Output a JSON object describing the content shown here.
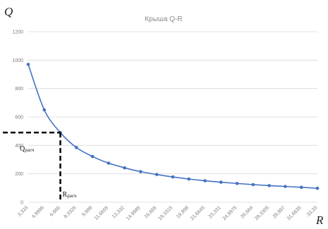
{
  "chart_data": {
    "type": "line",
    "title": "Крыша Q-R",
    "ylabel": "Q",
    "xlabel": "R",
    "ylim": [
      0,
      1200
    ],
    "yticks": [
      0,
      200,
      400,
      600,
      800,
      1000,
      1200
    ],
    "grid": true,
    "legend": "none",
    "x_categories": [
      "3,333",
      "4,9995",
      "6,666",
      "8,3325",
      "9,999",
      "11,6655",
      "13,332",
      "14,9985",
      "16,665",
      "18,3315",
      "19,998",
      "21,6645",
      "23,331",
      "24,9975",
      "26,664",
      "28,3305",
      "29,997",
      "31,6635",
      "33,33"
    ],
    "series": [
      {
        "values": [
          970,
          650,
          490,
          385,
          322,
          275,
          242,
          215,
          195,
          178,
          163,
          151,
          141,
          132,
          124,
          117,
          111,
          105,
          98
        ]
      }
    ],
    "annotation": {
      "q_label": "Q",
      "q_sub": "расч",
      "r_label": "R",
      "r_sub": "расч",
      "q_value": 490,
      "r_index": 2
    },
    "colors": {
      "line": "#4472C4",
      "grid": "#d9d9d9",
      "dash": "#000000"
    }
  }
}
